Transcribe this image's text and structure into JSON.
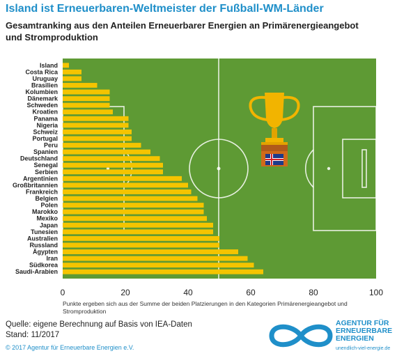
{
  "title": "Island ist Erneuerbaren-Weltmeister der Fußball-WM-Länder",
  "subtitle": "Gesamtranking aus den Anteilen Erneuerbarer Energien an Primärenergieangebot und Stromproduktion",
  "note": "Punkte ergeben sich aus der Summe der beiden Platzierungen in den Kategorien Primärenergieangebot und Stromproduktion",
  "source_line1": "Quelle: eigene Berechnung auf Basis von IEA-Daten",
  "source_line2": "Stand: 11/2017",
  "copyright": "© 2017 Agentur für Erneuerbare Energien e.V.",
  "logo": {
    "line1": "AGENTUR FÜR",
    "line2": "ERNEUERBARE",
    "line3": "ENERGIEN",
    "url": "unendlich-viel-energie.de"
  },
  "colors": {
    "title": "#1f8fc9",
    "pitch": "#5e9a34",
    "bar": "#f5c400",
    "trophy": "#f2b400"
  },
  "chart_data": {
    "type": "bar",
    "orientation": "horizontal",
    "categories": [
      "Island",
      "Costa Rica",
      "Uruguay",
      "Brasilien",
      "Kolumbien",
      "Dänemark",
      "Schweden",
      "Kroatien",
      "Panama",
      "Nigeria",
      "Schweiz",
      "Portugal",
      "Peru",
      "Spanien",
      "Deutschland",
      "Senegal",
      "Serbien",
      "Argentinien",
      "Großbritannien",
      "Frankreich",
      "Belgien",
      "Polen",
      "Marokko",
      "Mexiko",
      "Japan",
      "Tunesien",
      "Australien",
      "Russland",
      "Ägypten",
      "Iran",
      "Südkorea",
      "Saudi-Arabien"
    ],
    "values": [
      2,
      6,
      6,
      11,
      15,
      15,
      15,
      16,
      21,
      21,
      22,
      22,
      25,
      28,
      31,
      32,
      32,
      38,
      40,
      41,
      43,
      45,
      45,
      46,
      48,
      48,
      50,
      50,
      56,
      59,
      61,
      64
    ],
    "xlim": [
      0,
      100
    ],
    "xticks": [
      0,
      20,
      40,
      60,
      80,
      100
    ],
    "grid": false
  }
}
